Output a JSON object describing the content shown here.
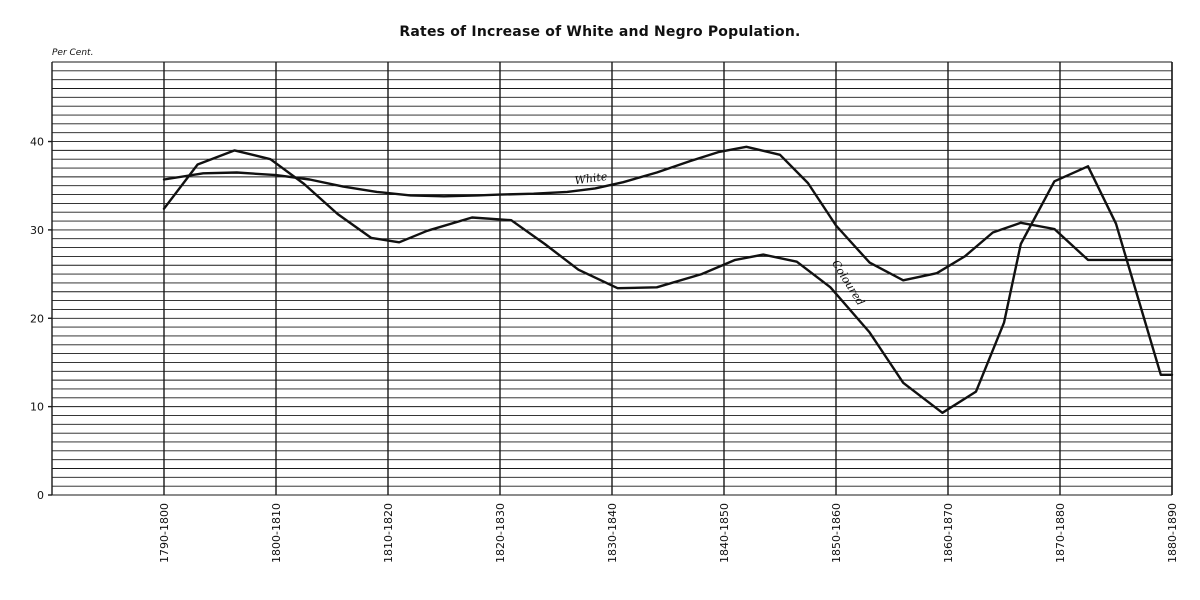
{
  "chart_data": {
    "type": "line",
    "title": "Rates of Increase of White and Negro Population.",
    "ylabel": "Per Cent.",
    "xlabel": "",
    "ylim": [
      0,
      49
    ],
    "yticks": [
      0,
      10,
      20,
      30,
      40
    ],
    "categories": [
      "1790-1800",
      "1800-1810",
      "1810-1820",
      "1820-1830",
      "1830-1840",
      "1840-1850",
      "1850-1860",
      "1860-1870",
      "1870-1880",
      "1880-1890"
    ],
    "grid": true,
    "series": [
      {
        "name": "White",
        "x": [
          0,
          0.35,
          0.65,
          1.0,
          1.3,
          1.6,
          1.9,
          2.2,
          2.5,
          2.8,
          3.0,
          3.3,
          3.6,
          3.85,
          4.1,
          4.4,
          4.7,
          4.95,
          5.2,
          5.5,
          5.75,
          6.0,
          6.3,
          6.6,
          6.9,
          7.15,
          7.4,
          7.65,
          7.95,
          8.25,
          8.55,
          8.85,
          9.0
        ],
        "values": [
          35.7,
          36.4,
          36.5,
          36.2,
          35.7,
          34.9,
          34.3,
          33.9,
          33.8,
          33.9,
          34.0,
          34.1,
          34.3,
          34.7,
          35.4,
          36.5,
          37.8,
          38.8,
          39.4,
          38.5,
          35.3,
          30.5,
          26.3,
          24.3,
          25.1,
          27.0,
          29.7,
          30.8,
          30.1,
          26.6,
          26.6,
          26.6,
          26.6
        ]
      },
      {
        "name": "Coloured",
        "x": [
          0,
          0.3,
          0.63,
          0.95,
          1.25,
          1.55,
          1.85,
          2.1,
          2.35,
          2.75,
          3.1,
          3.4,
          3.7,
          4.05,
          4.4,
          4.8,
          5.1,
          5.35,
          5.65,
          5.95,
          6.3,
          6.6,
          6.95,
          7.25,
          7.5,
          7.65,
          7.95,
          8.25,
          8.5,
          8.9,
          9.0
        ],
        "values": [
          32.4,
          37.4,
          39.0,
          38.0,
          35.2,
          31.8,
          29.1,
          28.6,
          29.9,
          31.4,
          31.1,
          28.4,
          25.5,
          23.4,
          23.5,
          25.0,
          26.6,
          27.2,
          26.4,
          23.5,
          18.4,
          12.7,
          9.3,
          11.7,
          19.5,
          28.4,
          35.5,
          37.2,
          30.7,
          13.6,
          13.6
        ]
      }
    ]
  }
}
